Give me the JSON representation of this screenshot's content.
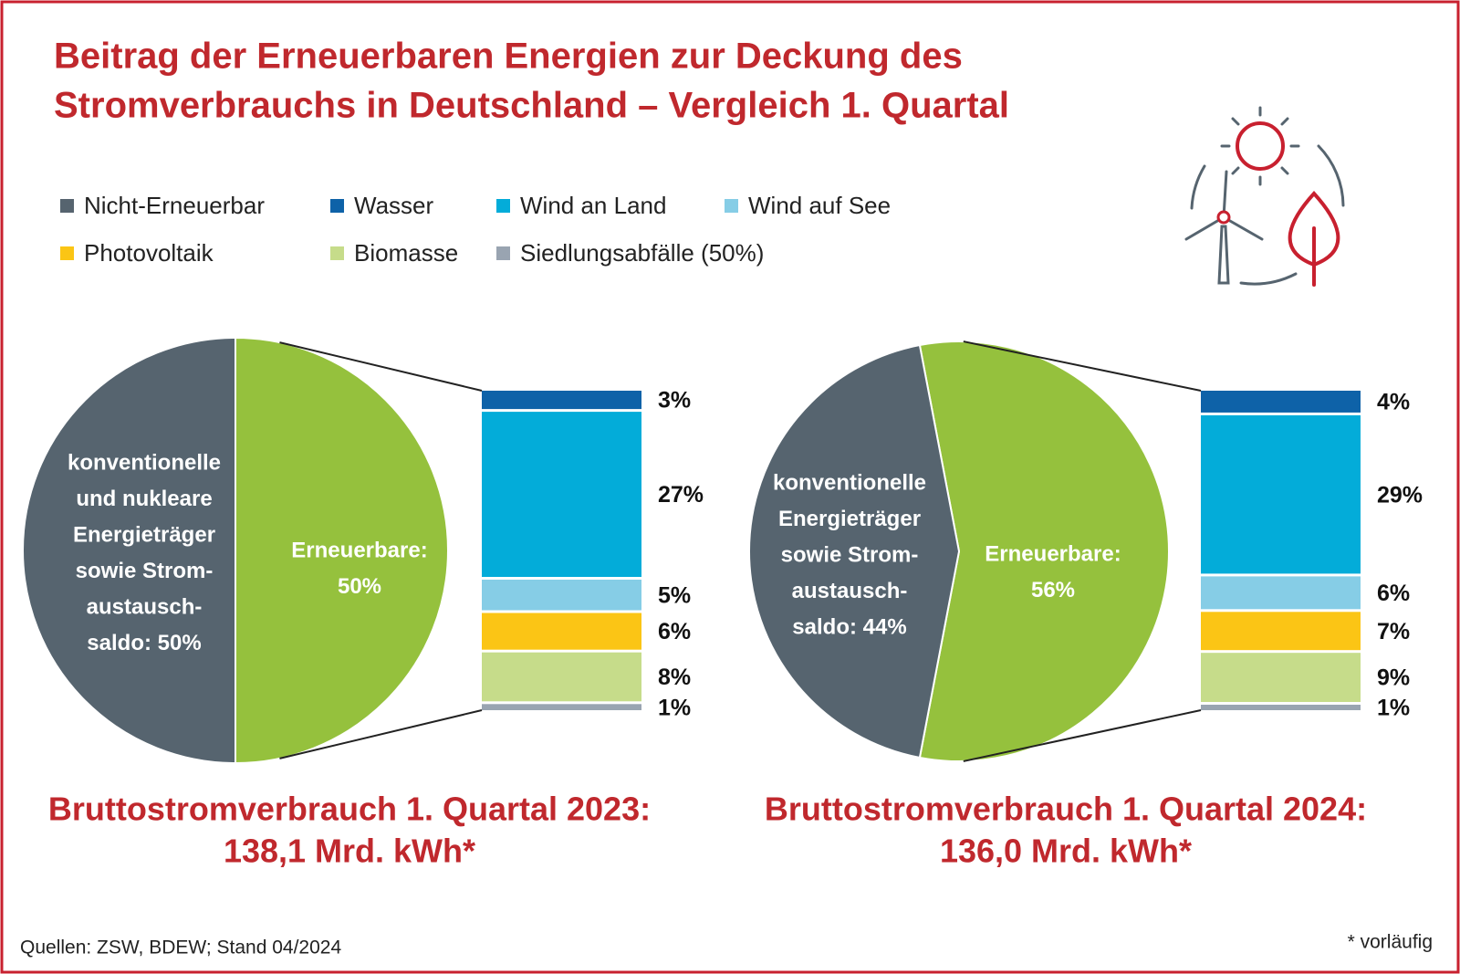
{
  "title": [
    "Beitrag der Erneuerbaren Energien zur Deckung des",
    "Stromverbrauchs in Deutschland – Vergleich 1. Quartal"
  ],
  "legend": [
    {
      "name": "Nicht-Erneuerbar",
      "color": "#56646f"
    },
    {
      "name": "Wasser",
      "color": "#0e62a8"
    },
    {
      "name": "Wind an Land",
      "color": "#03acd9"
    },
    {
      "name": "Wind auf See",
      "color": "#86cde6"
    },
    {
      "name": "Photovoltaik",
      "color": "#fbc515"
    },
    {
      "name": "Biomasse",
      "color": "#c6dc8a"
    },
    {
      "name": "Siedlungsabfälle (50%)",
      "color": "#99a4b1"
    }
  ],
  "chart_data": [
    {
      "type": "pie",
      "title": [
        "Bruttostromverbrauch 1. Quartal 2023:",
        "138,1 Mrd. kWh*"
      ],
      "labels": [
        [
          "konventionelle",
          "und nukleare",
          "Energieträger",
          "sowie Strom-",
          "austausch-",
          "saldo: 50%"
        ],
        [
          "Erneuerbare:",
          "50%"
        ]
      ],
      "values": [
        50,
        50
      ],
      "colors": [
        "#56646f",
        "#95c13d"
      ],
      "breakdown": {
        "values": [
          3,
          27,
          5,
          6,
          8,
          1
        ],
        "value_labels": [
          "3%",
          "27%",
          "5%",
          "6%",
          "8%",
          "1%"
        ],
        "colors": [
          "#0e62a8",
          "#03acd9",
          "#86cde6",
          "#fbc515",
          "#c6dc8a",
          "#99a4b1"
        ]
      }
    },
    {
      "type": "pie",
      "title": [
        "Bruttostromverbrauch 1. Quartal 2024:",
        "136,0 Mrd. kWh*"
      ],
      "labels": [
        [
          "konventionelle",
          "Energieträger",
          "sowie Strom-",
          "austausch-",
          "saldo: 44%"
        ],
        [
          "Erneuerbare:",
          "56%"
        ]
      ],
      "values": [
        44,
        56
      ],
      "colors": [
        "#56646f",
        "#95c13d"
      ],
      "breakdown": {
        "values": [
          4,
          29,
          6,
          7,
          9,
          1
        ],
        "value_labels": [
          "4%",
          "29%",
          "6%",
          "7%",
          "9%",
          "1%"
        ],
        "colors": [
          "#0e62a8",
          "#03acd9",
          "#86cde6",
          "#fbc515",
          "#c6dc8a",
          "#99a4b1"
        ]
      }
    }
  ],
  "footer": {
    "source": "Quellen: ZSW, BDEW; Stand 04/2024",
    "note": "* vorläufig"
  }
}
